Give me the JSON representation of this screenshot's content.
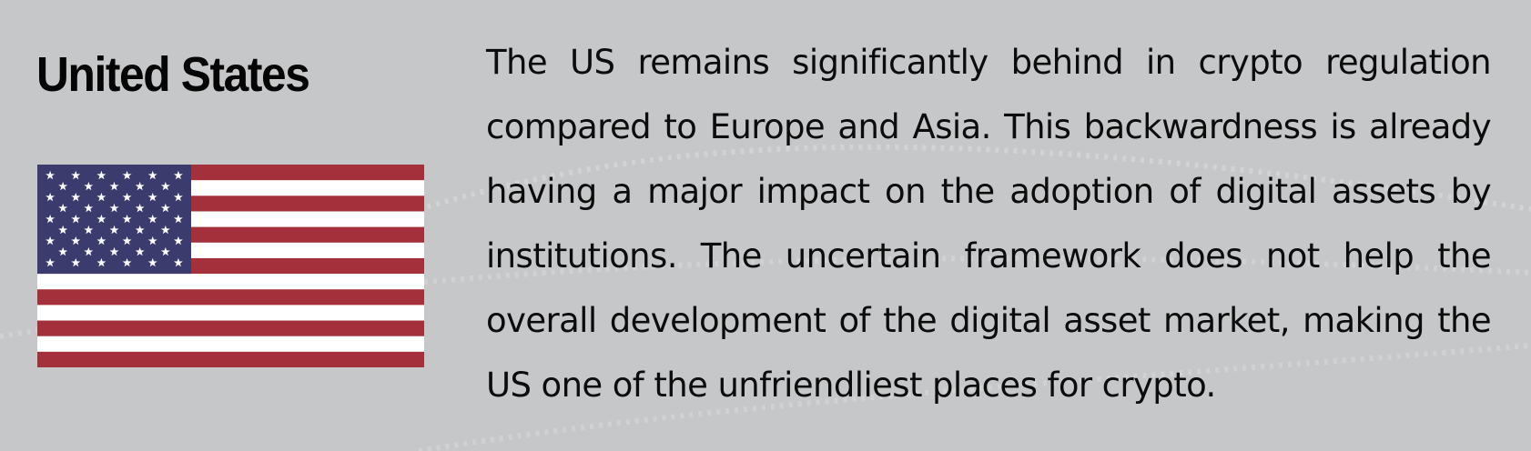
{
  "section": {
    "title": "United States",
    "paragraph": "The US remains significantly behind in crypto regulation compared to Europe and Asia. This backwardness is already having a major impact on the adoption of digital assets by institutions. The uncertain framework does not help the overall development of the digital asset market, making the US one of the unfriendliest places for crypto."
  },
  "flag": {
    "icon": "us-flag-icon",
    "stripe_red": "#a3303a",
    "stripe_white": "#ffffff",
    "canton_blue": "#3c3b6e"
  },
  "colors": {
    "background": "#c6c7c9",
    "text": "#0c0c0c"
  }
}
